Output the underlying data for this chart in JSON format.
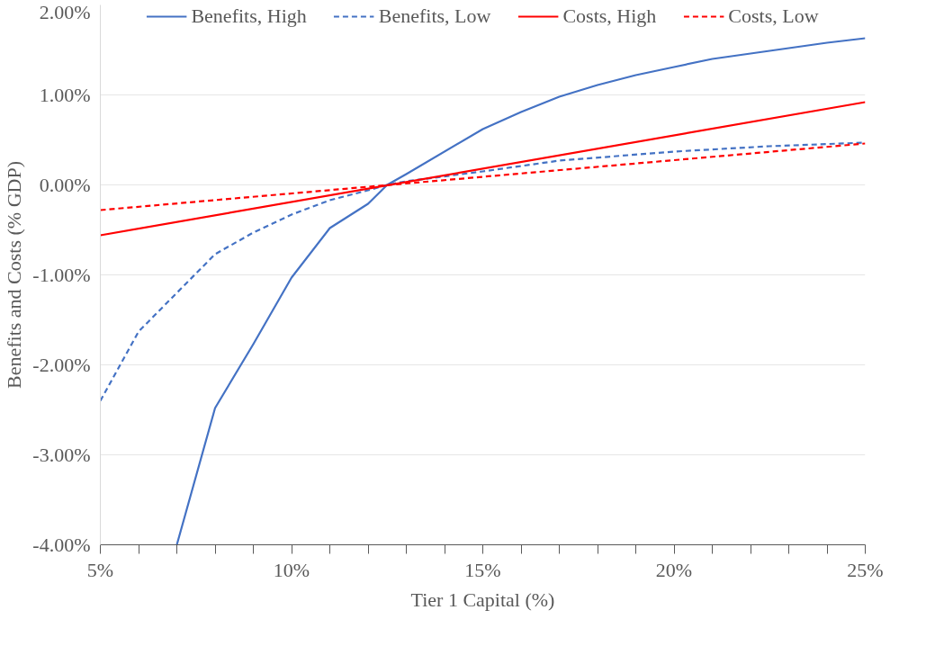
{
  "chart_data": {
    "type": "line",
    "xlabel": "Tier 1 Capital (%)",
    "ylabel": "Benefits and Costs (% GDP)",
    "xlim": [
      5,
      25
    ],
    "ylim": [
      -4,
      2
    ],
    "xticks": [
      {
        "value": 5,
        "label": "5%"
      },
      {
        "value": 6,
        "label": null
      },
      {
        "value": 7,
        "label": null
      },
      {
        "value": 8,
        "label": null
      },
      {
        "value": 9,
        "label": null
      },
      {
        "value": 10,
        "label": "10%"
      },
      {
        "value": 11,
        "label": null
      },
      {
        "value": 12,
        "label": null
      },
      {
        "value": 13,
        "label": null
      },
      {
        "value": 14,
        "label": null
      },
      {
        "value": 15,
        "label": "15%"
      },
      {
        "value": 16,
        "label": null
      },
      {
        "value": 17,
        "label": null
      },
      {
        "value": 18,
        "label": null
      },
      {
        "value": 19,
        "label": null
      },
      {
        "value": 20,
        "label": "20%"
      },
      {
        "value": 21,
        "label": null
      },
      {
        "value": 22,
        "label": null
      },
      {
        "value": 23,
        "label": null
      },
      {
        "value": 24,
        "label": null
      },
      {
        "value": 25,
        "label": "25%"
      }
    ],
    "yticks": [
      {
        "value": -4,
        "label": "-4.00%"
      },
      {
        "value": -3,
        "label": "-3.00%"
      },
      {
        "value": -2,
        "label": "-2.00%"
      },
      {
        "value": -1,
        "label": "-1.00%"
      },
      {
        "value": 0,
        "label": "0.00%"
      },
      {
        "value": 1,
        "label": "1.00%"
      },
      {
        "value": 2,
        "label": "2.00%"
      }
    ],
    "grid": "y",
    "legend": "top",
    "marker": "none",
    "series": [
      {
        "name": "Benefits, High",
        "color": "#4472c4",
        "line_style": "solid",
        "x": [
          7,
          8,
          9,
          10,
          11,
          12,
          12.5,
          13,
          15,
          16,
          17,
          18,
          19,
          20,
          21,
          22.5,
          23,
          24,
          25
        ],
        "values": [
          -4.0,
          -2.48,
          -1.77,
          -1.03,
          -0.48,
          -0.21,
          0.0,
          0.12,
          0.62,
          0.81,
          0.98,
          1.11,
          1.22,
          1.31,
          1.4,
          1.49,
          1.52,
          1.58,
          1.63
        ]
      },
      {
        "name": "Benefits, Low",
        "color": "#4472c4",
        "line_style": "dashed",
        "x": [
          5,
          6,
          7,
          8,
          9,
          10,
          11,
          12,
          12.5,
          13,
          15,
          17,
          20,
          22.5,
          25
        ],
        "values": [
          -2.4,
          -1.63,
          -1.2,
          -0.77,
          -0.53,
          -0.33,
          -0.17,
          -0.06,
          0.0,
          0.04,
          0.15,
          0.27,
          0.37,
          0.43,
          0.47
        ]
      },
      {
        "name": "Costs, High",
        "color": "#ff0000",
        "line_style": "solid",
        "x": [
          5,
          25
        ],
        "values": [
          -0.56,
          0.92
        ]
      },
      {
        "name": "Costs, Low",
        "color": "#ff0000",
        "line_style": "dashed",
        "x": [
          5,
          25
        ],
        "values": [
          -0.28,
          0.46
        ]
      }
    ]
  }
}
